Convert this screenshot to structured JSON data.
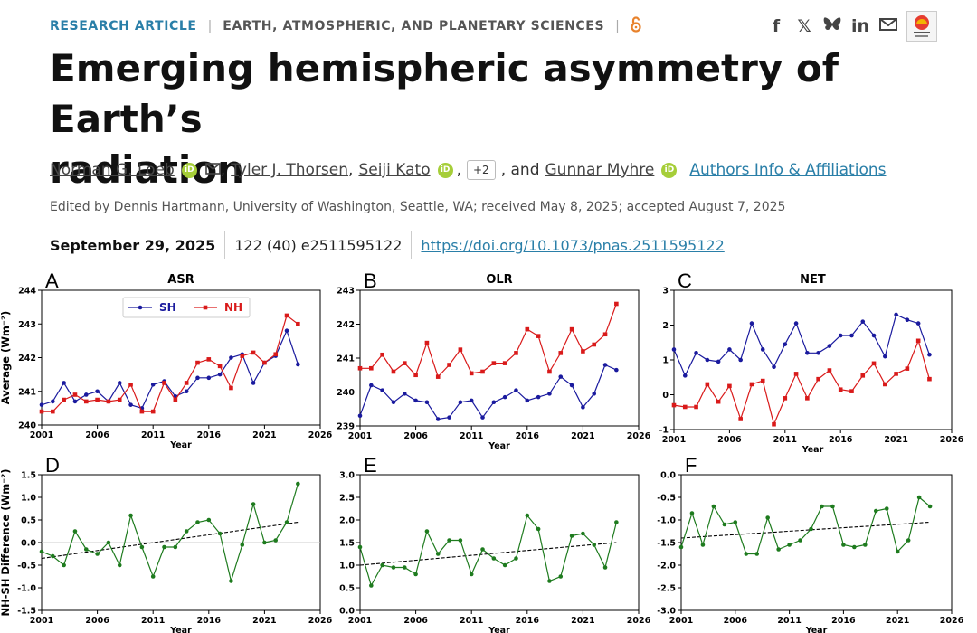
{
  "header": {
    "article_type": "RESEARCH ARTICLE",
    "section": "EARTH, ATMOSPHERIC, AND PLANETARY SCIENCES",
    "open_access_icon": "open-access-icon",
    "share_icons": [
      "facebook-icon",
      "x-icon",
      "bluesky-icon",
      "linkedin-icon",
      "email-icon"
    ],
    "check_updates_badge": "check-for-updates-badge"
  },
  "title": {
    "line1": "Emerging hemispheric asymmetry of Earth’s",
    "line2": "radiation"
  },
  "authors": {
    "a1": "Norman G. Loeb",
    "a2": "Tyler J. Thorsen",
    "a3": "Seiji Kato",
    "more": "+2",
    "and": ", and",
    "a4": "Gunnar Myhre",
    "affiliations": "Authors Info & Affiliations",
    "comma": ","
  },
  "edited": "Edited by Dennis Hartmann, University of Washington, Seattle, WA; received May 8, 2025; accepted August 7, 2025",
  "publication": {
    "date": "September 29, 2025",
    "citation": "122 (40) e2511595122",
    "doi": "https://doi.org/10.1073/pnas.2511595122"
  },
  "chart_data": [
    {
      "panel": "A",
      "type": "line",
      "title": "ASR",
      "ylabel": "Average (Wm⁻²)",
      "xlabel": "Year",
      "xlim": [
        2001,
        2026
      ],
      "ylim": [
        240,
        244
      ],
      "yticks": [
        240,
        241,
        242,
        243,
        244
      ],
      "legend": [
        {
          "name": "SH",
          "color": "#1a1a9e"
        },
        {
          "name": "NH",
          "color": "#d91a1a"
        }
      ],
      "x": [
        2001,
        2002,
        2003,
        2004,
        2005,
        2006,
        2007,
        2008,
        2009,
        2010,
        2011,
        2012,
        2013,
        2014,
        2015,
        2016,
        2017,
        2018,
        2019,
        2020,
        2021,
        2022,
        2023,
        2024
      ],
      "series": [
        {
          "name": "SH",
          "color": "#1a1a9e",
          "marker": "circle",
          "values": [
            240.6,
            240.7,
            241.25,
            240.7,
            240.9,
            241.0,
            240.7,
            241.25,
            240.6,
            240.5,
            241.2,
            241.3,
            240.85,
            241.0,
            241.4,
            241.4,
            241.5,
            242.0,
            242.1,
            241.25,
            241.85,
            242.05,
            242.8,
            241.8
          ]
        },
        {
          "name": "NH",
          "color": "#d91a1a",
          "marker": "square",
          "values": [
            240.4,
            240.4,
            240.75,
            240.9,
            240.7,
            240.75,
            240.7,
            240.75,
            241.2,
            240.4,
            240.4,
            241.25,
            240.75,
            241.25,
            241.85,
            241.95,
            241.75,
            241.1,
            242.05,
            242.15,
            241.85,
            242.1,
            243.25,
            243.0
          ]
        }
      ]
    },
    {
      "panel": "B",
      "type": "line",
      "title": "OLR",
      "ylabel": "",
      "xlabel": "Year",
      "xlim": [
        2001,
        2026
      ],
      "ylim": [
        239,
        243
      ],
      "yticks": [
        239,
        240,
        241,
        242,
        243
      ],
      "x": [
        2001,
        2002,
        2003,
        2004,
        2005,
        2006,
        2007,
        2008,
        2009,
        2010,
        2011,
        2012,
        2013,
        2014,
        2015,
        2016,
        2017,
        2018,
        2019,
        2020,
        2021,
        2022,
        2023,
        2024
      ],
      "series": [
        {
          "name": "SH",
          "color": "#1a1a9e",
          "marker": "circle",
          "values": [
            239.3,
            240.2,
            240.05,
            239.7,
            239.95,
            239.75,
            239.7,
            239.2,
            239.25,
            239.7,
            239.75,
            239.25,
            239.7,
            239.85,
            240.05,
            239.75,
            239.85,
            239.95,
            240.45,
            240.2,
            239.55,
            239.95,
            240.8,
            240.65
          ]
        },
        {
          "name": "NH",
          "color": "#d91a1a",
          "marker": "square",
          "values": [
            240.7,
            240.7,
            241.1,
            240.6,
            240.85,
            240.5,
            241.45,
            240.45,
            240.8,
            241.25,
            240.55,
            240.6,
            240.85,
            240.85,
            241.15,
            241.85,
            241.65,
            240.6,
            241.15,
            241.85,
            241.2,
            241.4,
            241.7,
            242.6
          ]
        }
      ]
    },
    {
      "panel": "C",
      "type": "line",
      "title": "NET",
      "ylabel": "",
      "xlabel": "Year",
      "xlim": [
        2001,
        2026
      ],
      "ylim": [
        -1,
        3
      ],
      "yticks": [
        -1,
        0,
        1,
        2,
        3
      ],
      "x": [
        2001,
        2002,
        2003,
        2004,
        2005,
        2006,
        2007,
        2008,
        2009,
        2010,
        2011,
        2012,
        2013,
        2014,
        2015,
        2016,
        2017,
        2018,
        2019,
        2020,
        2021,
        2022,
        2023,
        2024
      ],
      "series": [
        {
          "name": "SH",
          "color": "#1a1a9e",
          "marker": "circle",
          "values": [
            1.3,
            0.55,
            1.2,
            1.0,
            0.95,
            1.3,
            1.0,
            2.05,
            1.3,
            0.8,
            1.45,
            2.05,
            1.2,
            1.2,
            1.4,
            1.7,
            1.7,
            2.1,
            1.7,
            1.1,
            2.3,
            2.15,
            2.05,
            1.15
          ]
        },
        {
          "name": "NH",
          "color": "#d91a1a",
          "marker": "square",
          "values": [
            -0.3,
            -0.35,
            -0.35,
            0.3,
            -0.2,
            0.25,
            -0.7,
            0.3,
            0.4,
            -0.85,
            -0.1,
            0.6,
            -0.1,
            0.45,
            0.7,
            0.15,
            0.1,
            0.55,
            0.9,
            0.3,
            0.6,
            0.75,
            1.55,
            0.45
          ]
        }
      ]
    },
    {
      "panel": "D",
      "type": "line",
      "title": "",
      "ylabel": "NH-SH Difference (Wm⁻²)",
      "xlabel": "Year",
      "xlim": [
        2001,
        2026
      ],
      "ylim": [
        -1.5,
        1.5
      ],
      "yticks": [
        -1.5,
        -1.0,
        -0.5,
        0.0,
        0.5,
        1.0,
        1.5
      ],
      "zero_line": true,
      "x": [
        2001,
        2002,
        2003,
        2004,
        2005,
        2006,
        2007,
        2008,
        2009,
        2010,
        2011,
        2012,
        2013,
        2014,
        2015,
        2016,
        2017,
        2018,
        2019,
        2020,
        2021,
        2022,
        2023,
        2024
      ],
      "series": [
        {
          "name": "diff",
          "color": "#1e7b1e",
          "marker": "circle",
          "values": [
            -0.2,
            -0.3,
            -0.5,
            0.25,
            -0.15,
            -0.25,
            0.0,
            -0.5,
            0.6,
            -0.1,
            -0.75,
            -0.1,
            -0.1,
            0.25,
            0.45,
            0.5,
            0.2,
            -0.85,
            -0.05,
            0.85,
            0.0,
            0.05,
            0.45,
            1.3
          ]
        }
      ],
      "trend": {
        "start": [
          2001,
          -0.35
        ],
        "end": [
          2024,
          0.45
        ]
      }
    },
    {
      "panel": "E",
      "type": "line",
      "title": "",
      "ylabel": "",
      "xlabel": "Year",
      "xlim": [
        2001,
        2026
      ],
      "ylim": [
        0,
        3
      ],
      "yticks": [
        0.0,
        0.5,
        1.0,
        1.5,
        2.0,
        2.5,
        3.0
      ],
      "x": [
        2001,
        2002,
        2003,
        2004,
        2005,
        2006,
        2007,
        2008,
        2009,
        2010,
        2011,
        2012,
        2013,
        2014,
        2015,
        2016,
        2017,
        2018,
        2019,
        2020,
        2021,
        2022,
        2023,
        2024
      ],
      "series": [
        {
          "name": "diff",
          "color": "#1e7b1e",
          "marker": "circle",
          "values": [
            1.4,
            0.55,
            1.0,
            0.95,
            0.95,
            0.8,
            1.75,
            1.25,
            1.55,
            1.55,
            0.8,
            1.35,
            1.15,
            1.0,
            1.15,
            2.1,
            1.8,
            0.65,
            0.75,
            1.65,
            1.7,
            1.45,
            0.95,
            1.95
          ]
        }
      ],
      "trend": {
        "start": [
          2001,
          1.0
        ],
        "end": [
          2024,
          1.5
        ]
      }
    },
    {
      "panel": "F",
      "type": "line",
      "title": "",
      "ylabel": "",
      "xlabel": "Year",
      "xlim": [
        2001,
        2026
      ],
      "ylim": [
        -3,
        0
      ],
      "yticks": [
        -3.0,
        -2.5,
        -2.0,
        -1.5,
        -1.0,
        -0.5,
        0.0
      ],
      "x": [
        2001,
        2002,
        2003,
        2004,
        2005,
        2006,
        2007,
        2008,
        2009,
        2010,
        2011,
        2012,
        2013,
        2014,
        2015,
        2016,
        2017,
        2018,
        2019,
        2020,
        2021,
        2022,
        2023,
        2024
      ],
      "series": [
        {
          "name": "diff",
          "color": "#1e7b1e",
          "marker": "circle",
          "values": [
            -1.6,
            -0.85,
            -1.55,
            -0.7,
            -1.1,
            -1.05,
            -1.75,
            -1.75,
            -0.95,
            -1.65,
            -1.55,
            -1.45,
            -1.2,
            -0.7,
            -0.7,
            -1.55,
            -1.6,
            -1.55,
            -0.8,
            -0.75,
            -1.7,
            -1.45,
            -0.5,
            -0.7
          ]
        }
      ],
      "trend": {
        "start": [
          2001,
          -1.4
        ],
        "end": [
          2024,
          -1.05
        ]
      }
    }
  ],
  "x_ticks": [
    2001,
    2006,
    2011,
    2016,
    2021,
    2026
  ]
}
